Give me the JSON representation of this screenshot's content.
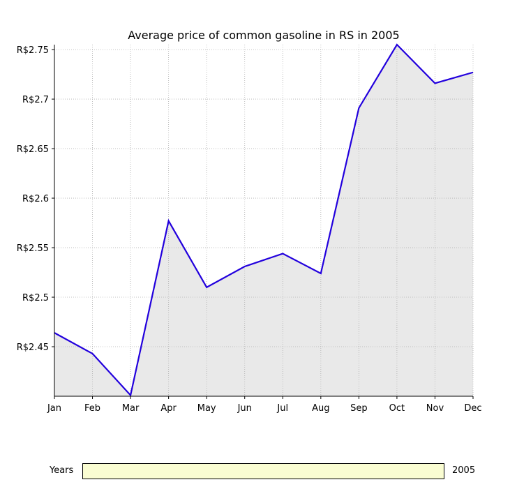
{
  "chart_data": {
    "type": "area",
    "title": "Average price of common gasoline in RS in 2005",
    "xlabel": "",
    "ylabel": "",
    "categories": [
      "Jan",
      "Feb",
      "Mar",
      "Apr",
      "May",
      "Jun",
      "Jul",
      "Aug",
      "Sep",
      "Oct",
      "Nov",
      "Dec"
    ],
    "series": [
      {
        "values": [
          2.464,
          2.443,
          2.401,
          2.577,
          2.51,
          2.531,
          2.544,
          2.524,
          2.691,
          2.755,
          2.716,
          2.727
        ]
      }
    ],
    "ylim": [
      2.4,
      2.755
    ],
    "yticks": [
      2.45,
      2.5,
      2.55,
      2.6,
      2.65,
      2.7,
      2.75
    ],
    "ytick_labels": [
      "R$2.45",
      "R$2.5",
      "R$2.55",
      "R$2.6",
      "R$2.65",
      "R$2.7",
      "R$2.75"
    ],
    "grid": true,
    "line_color": "#2200dd",
    "fill_color": "#e9e9e9"
  },
  "slider": {
    "label": "Years",
    "value": "2005",
    "track_color": "#fafdd2"
  }
}
